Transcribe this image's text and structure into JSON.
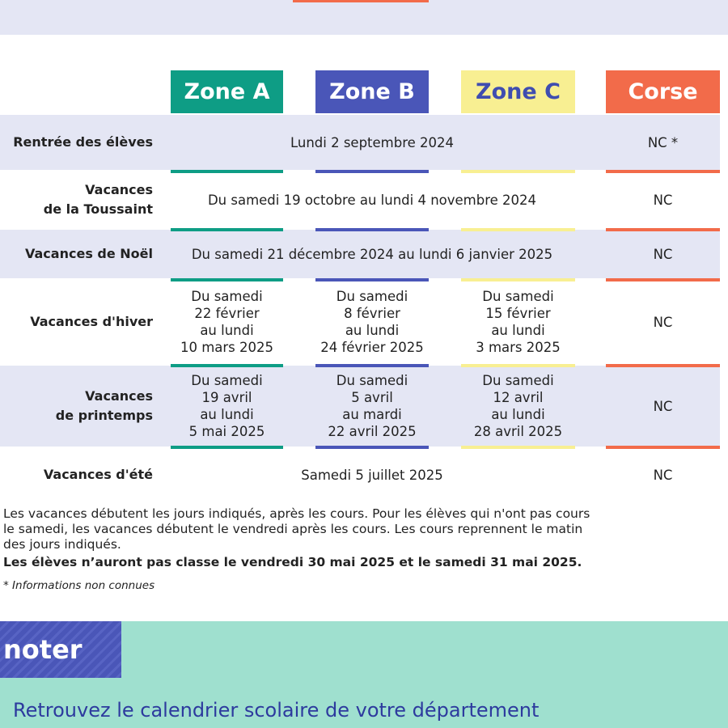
{
  "header": {
    "zones": [
      "Zone A",
      "Zone B",
      "Zone C",
      "Corse"
    ]
  },
  "table": {
    "rows": [
      {
        "label": [
          "Rentrée des élèves"
        ],
        "zones": [
          [
            "Lundi 2 septembre 2024"
          ]
        ],
        "corse": [
          "NC *"
        ]
      },
      {
        "label": [
          "Vacances",
          "de la Toussaint"
        ],
        "zones": [
          [
            "Du samedi 19 octobre au lundi 4 novembre 2024"
          ]
        ],
        "corse": [
          "NC"
        ]
      },
      {
        "label": [
          "Vacances de Noël"
        ],
        "zones": [
          [
            "Du samedi 21 décembre 2024 au lundi 6 janvier 2025"
          ]
        ],
        "corse": [
          "NC"
        ]
      },
      {
        "label": [
          "Vacances d'hiver"
        ],
        "zones": [
          [
            "Du samedi",
            "22 février",
            "au lundi",
            "10 mars 2025"
          ],
          [
            "Du samedi",
            "8 février",
            "au lundi",
            "24 février 2025"
          ],
          [
            "Du samedi",
            "15 février",
            "au lundi",
            "3 mars 2025"
          ]
        ],
        "corse": [
          "NC"
        ]
      },
      {
        "label": [
          "Vacances",
          "de printemps"
        ],
        "zones": [
          [
            "Du samedi",
            "19 avril",
            "au lundi",
            "5 mai 2025"
          ],
          [
            "Du samedi",
            "5 avril",
            "au mardi",
            "22 avril 2025"
          ],
          [
            "Du samedi",
            "12 avril",
            "au lundi",
            "28 avril 2025"
          ]
        ],
        "corse": [
          "NC"
        ]
      },
      {
        "label": [
          "Vacances d'été"
        ],
        "zones": [
          [
            "Samedi 5 juillet 2025"
          ]
        ],
        "corse": [
          "NC"
        ]
      }
    ]
  },
  "notes": {
    "text": [
      "Les vacances débutent les jours indiqués, après les cours. Pour les élèves qui n'ont pas cours",
      "le samedi, les vacances débutent le vendredi après les cours. Les cours reprennent le matin",
      "des jours indiqués."
    ],
    "bold": "Les élèves n’auront pas classe le vendredi 30 mai 2025 et le samedi 31 mai 2025.",
    "footnote": "* Informations non connues"
  },
  "banner": {
    "tag": "noter",
    "link": "Retrouvez le calendrier scolaire de votre département"
  }
}
